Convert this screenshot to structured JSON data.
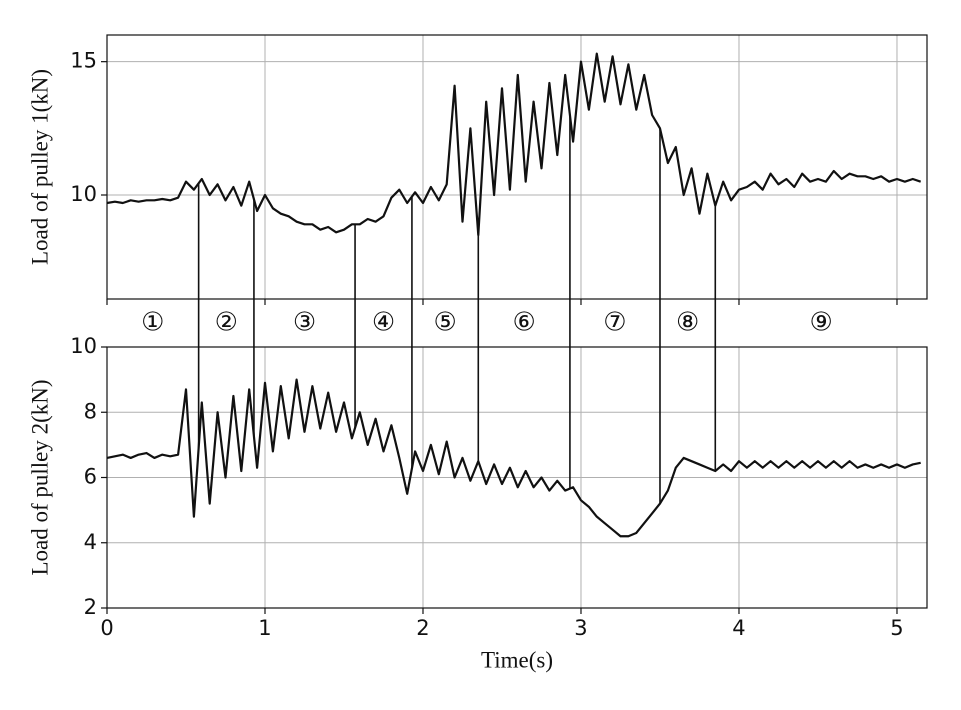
{
  "chart_data": [
    {
      "type": "line",
      "ylabel": "Load of pulley  1(kN)",
      "xlim": [
        0,
        5.19
      ],
      "ylim": [
        6.1,
        16.0
      ],
      "yticks": [
        10,
        15
      ],
      "xticks": [
        0,
        1,
        2,
        3,
        4,
        5
      ],
      "grid": true,
      "x": [
        0,
        0.05,
        0.1,
        0.15,
        0.2,
        0.25,
        0.3,
        0.35,
        0.4,
        0.45,
        0.5,
        0.55,
        0.6,
        0.65,
        0.7,
        0.75,
        0.8,
        0.85,
        0.9,
        0.95,
        1,
        1.05,
        1.1,
        1.15,
        1.2,
        1.25,
        1.3,
        1.35,
        1.4,
        1.45,
        1.5,
        1.55,
        1.6,
        1.65,
        1.7,
        1.75,
        1.8,
        1.85,
        1.9,
        1.95,
        2,
        2.05,
        2.1,
        2.15,
        2.2,
        2.25,
        2.3,
        2.35,
        2.4,
        2.45,
        2.5,
        2.55,
        2.6,
        2.65,
        2.7,
        2.75,
        2.8,
        2.85,
        2.9,
        2.95,
        3,
        3.05,
        3.1,
        3.15,
        3.2,
        3.25,
        3.3,
        3.35,
        3.4,
        3.45,
        3.5,
        3.55,
        3.6,
        3.65,
        3.7,
        3.75,
        3.8,
        3.85,
        3.9,
        3.95,
        4,
        4.05,
        4.1,
        4.15,
        4.2,
        4.25,
        4.3,
        4.35,
        4.4,
        4.45,
        4.5,
        4.55,
        4.6,
        4.65,
        4.7,
        4.75,
        4.8,
        4.85,
        4.9,
        4.95,
        5,
        5.05,
        5.1,
        5.15
      ],
      "series": [
        {
          "color": "#111111",
          "values": [
            9.7,
            9.75,
            9.7,
            9.8,
            9.75,
            9.8,
            9.8,
            9.85,
            9.8,
            9.9,
            10.5,
            10.2,
            10.6,
            10.0,
            10.4,
            9.8,
            10.3,
            9.6,
            10.5,
            9.4,
            10.0,
            9.5,
            9.3,
            9.2,
            9.0,
            8.9,
            8.9,
            8.7,
            8.8,
            8.6,
            8.7,
            8.9,
            8.9,
            9.1,
            9.0,
            9.2,
            9.9,
            10.2,
            9.7,
            10.1,
            9.7,
            10.3,
            9.8,
            10.4,
            14.1,
            9.0,
            12.5,
            8.5,
            13.5,
            10.0,
            14.0,
            10.2,
            14.5,
            10.5,
            13.5,
            11.0,
            14.2,
            11.5,
            14.5,
            12.0,
            15.0,
            13.2,
            15.3,
            13.5,
            15.2,
            13.4,
            14.9,
            13.2,
            14.5,
            13.0,
            12.5,
            11.2,
            11.8,
            10.0,
            11.0,
            9.3,
            10.8,
            9.6,
            10.5,
            9.8,
            10.2,
            10.3,
            10.5,
            10.2,
            10.8,
            10.4,
            10.6,
            10.3,
            10.8,
            10.5,
            10.6,
            10.5,
            10.9,
            10.6,
            10.8,
            10.7,
            10.7,
            10.6,
            10.7,
            10.5,
            10.6,
            10.5,
            10.6,
            10.5
          ]
        }
      ]
    },
    {
      "type": "line",
      "ylabel": "Load of pulley  2(kN)",
      "xlabel": "Time(s)",
      "xlim": [
        0,
        5.19
      ],
      "ylim": [
        2,
        10
      ],
      "yticks": [
        2,
        4,
        6,
        8,
        10
      ],
      "xticks": [
        0,
        1,
        2,
        3,
        4,
        5
      ],
      "grid": true,
      "x": [
        0,
        0.05,
        0.1,
        0.15,
        0.2,
        0.25,
        0.3,
        0.35,
        0.4,
        0.45,
        0.5,
        0.55,
        0.6,
        0.65,
        0.7,
        0.75,
        0.8,
        0.85,
        0.9,
        0.95,
        1,
        1.05,
        1.1,
        1.15,
        1.2,
        1.25,
        1.3,
        1.35,
        1.4,
        1.45,
        1.5,
        1.55,
        1.6,
        1.65,
        1.7,
        1.75,
        1.8,
        1.85,
        1.9,
        1.95,
        2,
        2.05,
        2.1,
        2.15,
        2.2,
        2.25,
        2.3,
        2.35,
        2.4,
        2.45,
        2.5,
        2.55,
        2.6,
        2.65,
        2.7,
        2.75,
        2.8,
        2.85,
        2.9,
        2.95,
        3,
        3.05,
        3.1,
        3.15,
        3.2,
        3.25,
        3.3,
        3.35,
        3.4,
        3.45,
        3.5,
        3.55,
        3.6,
        3.65,
        3.7,
        3.75,
        3.8,
        3.85,
        3.9,
        3.95,
        4,
        4.05,
        4.1,
        4.15,
        4.2,
        4.25,
        4.3,
        4.35,
        4.4,
        4.45,
        4.5,
        4.55,
        4.6,
        4.65,
        4.7,
        4.75,
        4.8,
        4.85,
        4.9,
        4.95,
        5,
        5.05,
        5.1,
        5.15
      ],
      "series": [
        {
          "color": "#111111",
          "values": [
            6.6,
            6.65,
            6.7,
            6.6,
            6.7,
            6.75,
            6.6,
            6.7,
            6.65,
            6.7,
            8.7,
            4.8,
            8.3,
            5.2,
            8.0,
            6.0,
            8.5,
            6.2,
            8.7,
            6.3,
            8.9,
            6.8,
            8.8,
            7.2,
            9.0,
            7.4,
            8.8,
            7.5,
            8.6,
            7.4,
            8.3,
            7.2,
            8.0,
            7.0,
            7.8,
            6.8,
            7.6,
            6.6,
            5.5,
            6.8,
            6.2,
            7.0,
            6.1,
            7.1,
            6.0,
            6.6,
            5.9,
            6.5,
            5.8,
            6.4,
            5.8,
            6.3,
            5.7,
            6.2,
            5.7,
            6.0,
            5.6,
            5.9,
            5.6,
            5.7,
            5.3,
            5.1,
            4.8,
            4.6,
            4.4,
            4.2,
            4.2,
            4.3,
            4.6,
            4.9,
            5.2,
            5.6,
            6.3,
            6.6,
            6.5,
            6.4,
            6.3,
            6.2,
            6.4,
            6.2,
            6.5,
            6.3,
            6.5,
            6.3,
            6.5,
            6.3,
            6.5,
            6.3,
            6.5,
            6.3,
            6.5,
            6.3,
            6.5,
            6.3,
            6.5,
            6.3,
            6.4,
            6.3,
            6.4,
            6.3,
            6.4,
            6.3,
            6.4,
            6.45
          ]
        }
      ],
      "annotations": {
        "labels": [
          "①",
          "②",
          "③",
          "④",
          "⑤",
          "⑥",
          "⑦",
          "⑧",
          "⑨"
        ],
        "boundaries": [
          0.58,
          0.93,
          1.57,
          1.93,
          2.35,
          2.93,
          3.5,
          3.85
        ]
      }
    }
  ]
}
